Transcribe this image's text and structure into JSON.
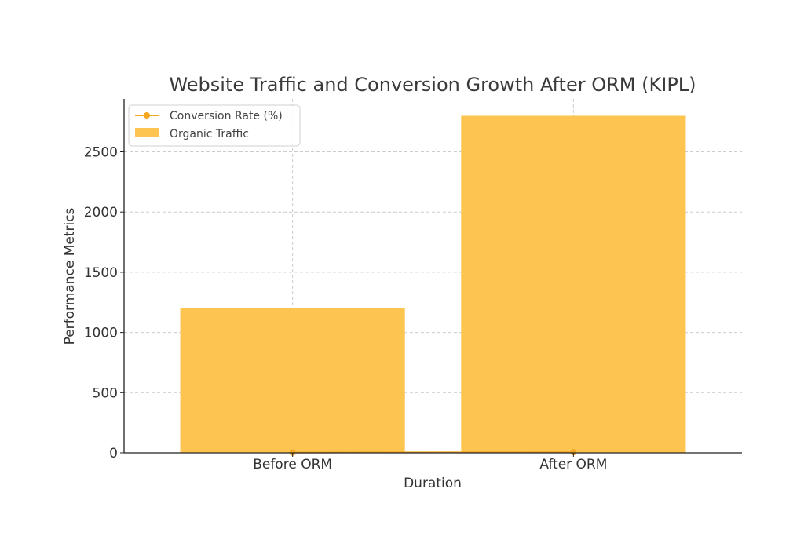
{
  "chart_data": {
    "type": "bar",
    "title": "Website Traffic and Conversion Growth After ORM (KIPL)",
    "xlabel": "Duration",
    "ylabel": "Performance Metrics",
    "categories": [
      "Before ORM",
      "After ORM"
    ],
    "series": [
      {
        "name": "Organic Traffic",
        "kind": "bar",
        "values": [
          1200,
          2800
        ],
        "color": "#fdc54f"
      },
      {
        "name": "Conversion Rate (%)",
        "kind": "line",
        "values": [
          2.5,
          5.8
        ],
        "color": "#f5a623"
      }
    ],
    "yticks": [
      0,
      500,
      1000,
      1500,
      2000,
      2500
    ],
    "ylim": [
      0,
      2940
    ],
    "grid": true,
    "legend": "top-left"
  }
}
